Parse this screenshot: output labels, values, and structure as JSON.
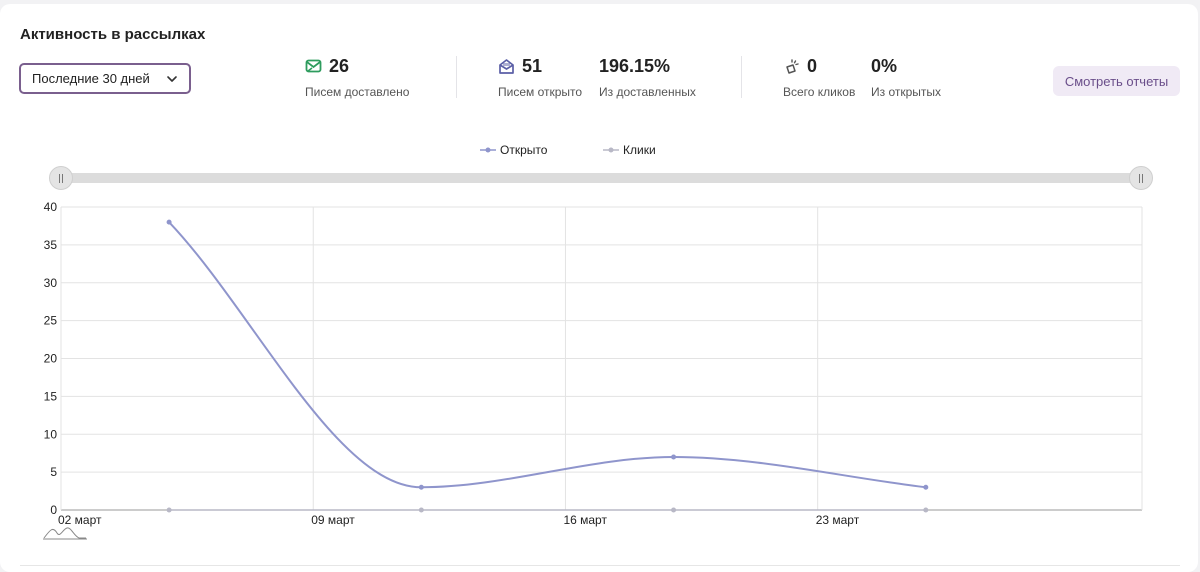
{
  "header": {
    "title": "Активность в рассылках"
  },
  "period_select": {
    "value": "Последние 30 дней"
  },
  "stats": {
    "delivered": {
      "value": "26",
      "label": "Писем доставлено"
    },
    "opened": {
      "value": "51",
      "label": "Писем открыто"
    },
    "open_rate": {
      "value": "196.15%",
      "label": "Из доставленных"
    },
    "clicks": {
      "value": "0",
      "label": "Всего кликов"
    },
    "click_rate": {
      "value": "0%",
      "label": "Из открытых"
    }
  },
  "actions": {
    "reports_label": "Смотреть отчеты"
  },
  "colors": {
    "accent": "#7a5f8e",
    "delivered_icon": "#2e9c5e",
    "line_opened": "#8f95cc",
    "line_clicks": "#b8b8c6"
  },
  "chart_data": {
    "type": "line",
    "x_tick_labels": [
      "02 март",
      "09 март",
      "16 март",
      "23 март"
    ],
    "x": [
      "05 март",
      "12 март",
      "19 март",
      "26 март"
    ],
    "series": [
      {
        "name": "Открыто",
        "values": [
          38,
          3,
          7,
          3
        ]
      },
      {
        "name": "Клики",
        "values": [
          0,
          0,
          0,
          0
        ]
      }
    ],
    "ylim": [
      0,
      40
    ],
    "y_ticks": [
      0,
      5,
      10,
      15,
      20,
      25,
      30,
      35,
      40
    ],
    "grid": true,
    "legend": "top-center",
    "smooth": true
  }
}
